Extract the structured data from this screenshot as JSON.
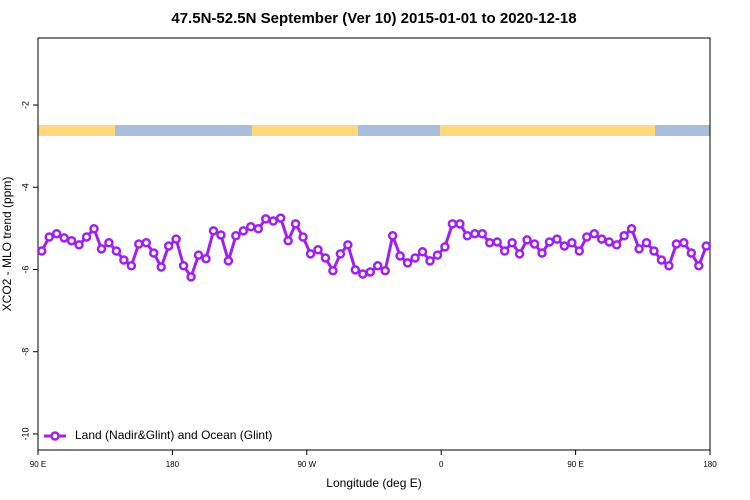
{
  "chart_data": {
    "type": "line",
    "title": "47.5N-52.5N September (Ver 10)   2015-01-01 to 2020-12-18",
    "xlabel": "Longitude (deg E)",
    "ylabel": "XCO2 - MLO trend (ppm)",
    "x": [
      92.5,
      97.5,
      102.5,
      107.5,
      112.5,
      117.5,
      122.5,
      127.5,
      132.5,
      137.5,
      142.5,
      147.5,
      152.5,
      157.5,
      162.5,
      167.5,
      172.5,
      177.5,
      182.5,
      187.5,
      192.5,
      197.5,
      202.5,
      207.5,
      212.5,
      217.5,
      222.5,
      227.5,
      232.5,
      237.5,
      242.5,
      247.5,
      252.5,
      257.5,
      262.5,
      267.5,
      272.5,
      277.5,
      282.5,
      287.5,
      292.5,
      297.5,
      302.5,
      307.5,
      312.5,
      317.5,
      322.5,
      327.5,
      332.5,
      337.5,
      342.5,
      347.5,
      352.5,
      357.5,
      362.5,
      367.5,
      372.5,
      377.5,
      382.5,
      387.5,
      392.5,
      397.5,
      402.5,
      407.5,
      412.5,
      417.5,
      422.5,
      427.5,
      432.5,
      437.5,
      442.5,
      447.5,
      452.5,
      457.5,
      462.5,
      467.5,
      472.5,
      477.5,
      482.5,
      487.5,
      492.5,
      497.5,
      502.5,
      507.5,
      512.5,
      517.5,
      522.5,
      527.5,
      532.5,
      537.5
    ],
    "series": [
      {
        "name": "Land (Nadir&Glint) and Ocean (Glint)",
        "color": "#a020f0",
        "values": [
          -5.55,
          -5.21,
          -5.13,
          -5.23,
          -5.3,
          -5.4,
          -5.21,
          -5.01,
          -5.5,
          -5.35,
          -5.55,
          -5.77,
          -5.91,
          -5.38,
          -5.35,
          -5.6,
          -5.94,
          -5.43,
          -5.26,
          -5.91,
          -6.18,
          -5.65,
          -5.74,
          -5.06,
          -5.16,
          -5.79,
          -5.18,
          -5.06,
          -4.96,
          -5.01,
          -4.77,
          -4.82,
          -4.75,
          -5.3,
          -4.89,
          -5.21,
          -5.62,
          -5.52,
          -5.72,
          -6.03,
          -5.62,
          -5.4,
          -6.01,
          -6.11,
          -6.06,
          -5.91,
          -6.03,
          -5.18,
          -5.67,
          -5.84,
          -5.72,
          -5.57,
          -5.79,
          -5.65,
          -5.45,
          -4.89,
          -4.89,
          -5.18,
          -5.13,
          -5.13,
          -5.35,
          -5.33,
          -5.55,
          -5.35,
          -5.62,
          -5.28,
          -5.38,
          -5.6,
          -5.33,
          -5.26,
          -5.43,
          -5.35,
          -5.55,
          -5.21,
          -5.13,
          -5.26,
          -5.33,
          -5.4,
          -5.18,
          -5.01,
          -5.5,
          -5.35,
          -5.55,
          -5.77,
          -5.91,
          -5.38,
          -5.35,
          -5.6,
          -5.91,
          -5.43
        ]
      }
    ],
    "xlim": [
      90,
      540
    ],
    "xticks": [
      {
        "value": 90,
        "label": "90 E"
      },
      180,
      {
        "value": 270,
        "label": "90 W"
      },
      {
        "value": 360,
        "label": "0"
      },
      {
        "value": 450,
        "label": "90 E"
      },
      {
        "value": 540,
        "label": "180"
      }
    ],
    "ylim": [
      -10.39,
      -0.37
    ],
    "yticks": [
      -2,
      -4,
      -6,
      -8,
      -10
    ],
    "legend": "bottomleft"
  }
}
